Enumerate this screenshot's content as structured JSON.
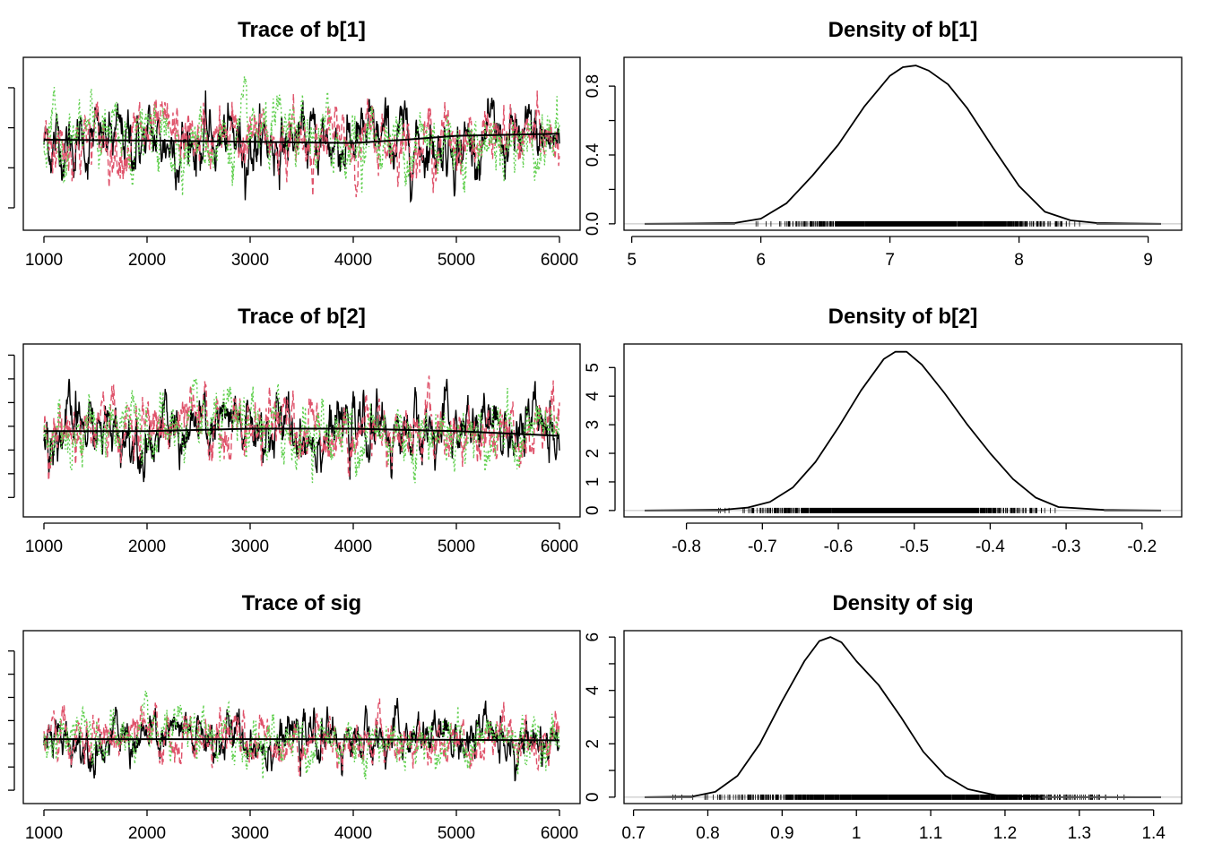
{
  "colors": {
    "chain1": "#000000",
    "chain2": "#DF536B",
    "chain3": "#61D04F",
    "rug": "#000000",
    "tail": "#555555",
    "zero_line": "#BEBEBE"
  },
  "chart_data": [
    {
      "type": "line",
      "title": "Trace of b[1]",
      "variable": "b[1]",
      "xlim": [
        1000,
        6000
      ],
      "x_ticks": [
        1000,
        2000,
        3000,
        4000,
        5000,
        6000
      ],
      "ylim": [
        5.1,
        9.1
      ],
      "y_ticks": [
        5.5,
        6.5,
        7.5,
        8.5
      ],
      "y_tick_labels_shown": false,
      "series": [
        {
          "values_summary": {
            "center": 7.15,
            "spread": 0.42,
            "min": 5.5,
            "max": 8.9
          }
        },
        {
          "values_summary": {
            "center": 7.2,
            "spread": 0.42,
            "min": 5.15,
            "max": 8.6
          }
        },
        {
          "values_summary": {
            "center": 7.2,
            "spread": 0.42,
            "min": 5.8,
            "max": 9.1
          }
        }
      ],
      "smooth": {
        "x": [
          1000,
          2000,
          3000,
          4000,
          4500,
          5000,
          6000
        ],
        "y": [
          7.2,
          7.18,
          7.15,
          7.12,
          7.2,
          7.3,
          7.35
        ]
      }
    },
    {
      "type": "area",
      "title": "Density of b[1]",
      "variable": "b[1]",
      "xlim": [
        5.1,
        9.1
      ],
      "x_ticks": [
        5,
        6,
        7,
        8,
        9
      ],
      "ylim": [
        0,
        0.93
      ],
      "y_ticks": [
        0.0,
        0.4,
        0.8
      ],
      "y_minor_ticks": [
        0.2,
        0.6
      ],
      "curve": {
        "x": [
          5.1,
          5.8,
          6.0,
          6.2,
          6.4,
          6.6,
          6.8,
          7.0,
          7.1,
          7.2,
          7.3,
          7.45,
          7.6,
          7.8,
          8.0,
          8.2,
          8.4,
          8.6,
          9.1
        ],
        "y": [
          0,
          0.005,
          0.03,
          0.12,
          0.28,
          0.46,
          0.68,
          0.86,
          0.91,
          0.92,
          0.89,
          0.81,
          0.67,
          0.44,
          0.22,
          0.07,
          0.02,
          0.005,
          0
        ]
      },
      "rug_range": [
        5.95,
        8.55
      ]
    },
    {
      "type": "line",
      "title": "Trace of b[2]",
      "variable": "b[2]",
      "xlim": [
        1000,
        6000
      ],
      "x_ticks": [
        1000,
        2000,
        3000,
        4000,
        5000,
        6000
      ],
      "ylim": [
        -0.855,
        -0.18
      ],
      "y_ticks": [
        -0.8,
        -0.7,
        -0.6,
        -0.5,
        -0.4,
        -0.3,
        -0.2
      ],
      "y_tick_labels_shown": false,
      "series": [
        {
          "values_summary": {
            "center": -0.52,
            "spread": 0.07,
            "min": -0.8,
            "max": -0.3
          }
        },
        {
          "values_summary": {
            "center": -0.51,
            "spread": 0.07,
            "min": -0.75,
            "max": -0.18
          }
        },
        {
          "values_summary": {
            "center": -0.52,
            "spread": 0.07,
            "min": -0.85,
            "max": -0.3
          }
        }
      ],
      "smooth": {
        "x": [
          1000,
          2000,
          3000,
          4000,
          5000,
          6000
        ],
        "y": [
          -0.52,
          -0.52,
          -0.51,
          -0.51,
          -0.52,
          -0.54
        ]
      }
    },
    {
      "type": "area",
      "title": "Density of b[2]",
      "variable": "b[2]",
      "xlim": [
        -0.855,
        -0.175
      ],
      "x_ticks": [
        -0.8,
        -0.7,
        -0.6,
        -0.5,
        -0.4,
        -0.3,
        -0.2
      ],
      "ylim": [
        0,
        5.6
      ],
      "y_ticks": [
        0,
        1,
        2,
        3,
        4,
        5
      ],
      "curve": {
        "x": [
          -0.855,
          -0.75,
          -0.72,
          -0.69,
          -0.66,
          -0.63,
          -0.6,
          -0.57,
          -0.54,
          -0.525,
          -0.51,
          -0.49,
          -0.46,
          -0.43,
          -0.4,
          -0.37,
          -0.34,
          -0.31,
          -0.25,
          -0.175
        ],
        "y": [
          0,
          0.03,
          0.1,
          0.3,
          0.8,
          1.7,
          2.9,
          4.2,
          5.3,
          5.55,
          5.55,
          5.1,
          4.1,
          3.0,
          2.0,
          1.1,
          0.45,
          0.12,
          0.02,
          0
        ]
      },
      "rug_range": [
        -0.76,
        -0.3
      ]
    },
    {
      "type": "line",
      "title": "Trace of sig",
      "variable": "sig",
      "xlim": [
        1000,
        6000
      ],
      "x_ticks": [
        1000,
        2000,
        3000,
        4000,
        5000,
        6000
      ],
      "ylim": [
        0.72,
        1.41
      ],
      "y_ticks": [
        0.75,
        0.85,
        0.95,
        1.05,
        1.15,
        1.25,
        1.35
      ],
      "y_tick_labels_shown": false,
      "series": [
        {
          "values_summary": {
            "center": 0.97,
            "spread": 0.055,
            "min": 0.72,
            "max": 1.4
          }
        },
        {
          "values_summary": {
            "center": 0.97,
            "spread": 0.055,
            "min": 0.76,
            "max": 1.24
          }
        },
        {
          "values_summary": {
            "center": 0.97,
            "spread": 0.055,
            "min": 0.74,
            "max": 1.27
          }
        }
      ],
      "smooth": {
        "x": [
          1000,
          3500,
          6000
        ],
        "y": [
          0.97,
          0.97,
          0.965
        ]
      }
    },
    {
      "type": "area",
      "title": "Density of sig",
      "variable": "sig",
      "xlim": [
        0.715,
        1.41
      ],
      "x_ticks": [
        0.7,
        0.8,
        0.9,
        1.0,
        1.1,
        1.2,
        1.3,
        1.4
      ],
      "ylim": [
        0,
        6.0
      ],
      "y_ticks": [
        0,
        2,
        4,
        6
      ],
      "y_minor_ticks": [
        1,
        3,
        5
      ],
      "curve": {
        "x": [
          0.715,
          0.78,
          0.81,
          0.84,
          0.87,
          0.9,
          0.93,
          0.95,
          0.965,
          0.98,
          1.0,
          1.03,
          1.06,
          1.09,
          1.12,
          1.15,
          1.19,
          1.25,
          1.41
        ],
        "y": [
          0,
          0.03,
          0.2,
          0.8,
          2.0,
          3.6,
          5.1,
          5.85,
          6.0,
          5.8,
          5.1,
          4.2,
          3.0,
          1.7,
          0.8,
          0.3,
          0.06,
          0.01,
          0
        ]
      },
      "rug_range": [
        0.75,
        1.38
      ]
    }
  ]
}
